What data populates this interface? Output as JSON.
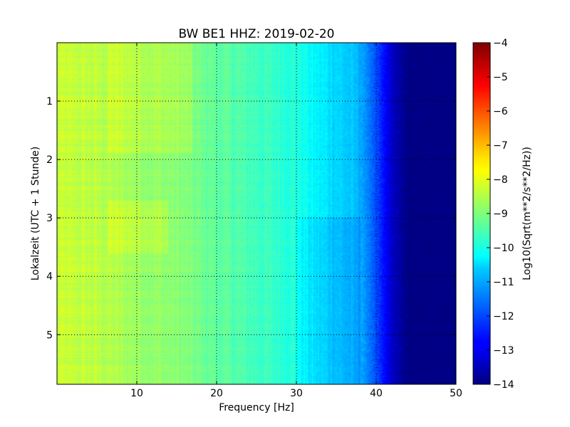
{
  "chart_data": {
    "type": "heatmap",
    "title": "BW BE1 HHZ: 2019-02-20",
    "xlabel": "Frequency [Hz]",
    "ylabel": "Lokalzeit (UTC + 1 Stunde)",
    "xlim": [
      0,
      50
    ],
    "ylim": [
      5.85,
      0
    ],
    "x_ticks": [
      10,
      20,
      30,
      40,
      50
    ],
    "x_tick_labels": [
      "10",
      "20",
      "30",
      "40",
      "50"
    ],
    "y_ticks": [
      1,
      2,
      3,
      4,
      5
    ],
    "y_tick_labels": [
      "1",
      "2",
      "3",
      "4",
      "5"
    ],
    "grid": true,
    "colorbar": {
      "label": "Log10(Sqrt(m**2/s**2/Hz))",
      "range": [
        -14,
        -4
      ],
      "ticks": [
        -14,
        -13,
        -12,
        -11,
        -10,
        -9,
        -8,
        -7,
        -6,
        -5,
        -4
      ],
      "tick_labels": [
        "−14",
        "−13",
        "−12",
        "−11",
        "−10",
        "−9",
        "−8",
        "−7",
        "−6",
        "−5",
        "−4"
      ],
      "colormap": "jet"
    },
    "spectral_profile": {
      "frequency_hz": [
        0,
        5,
        10,
        15,
        20,
        25,
        30,
        32,
        35,
        38,
        40,
        42,
        44,
        50
      ],
      "log10_amplitude": [
        -8.3,
        -8.4,
        -8.7,
        -8.9,
        -9.3,
        -9.6,
        -9.9,
        -10.3,
        -10.6,
        -11.0,
        -12.0,
        -13.3,
        -14.0,
        -14.0
      ]
    }
  }
}
